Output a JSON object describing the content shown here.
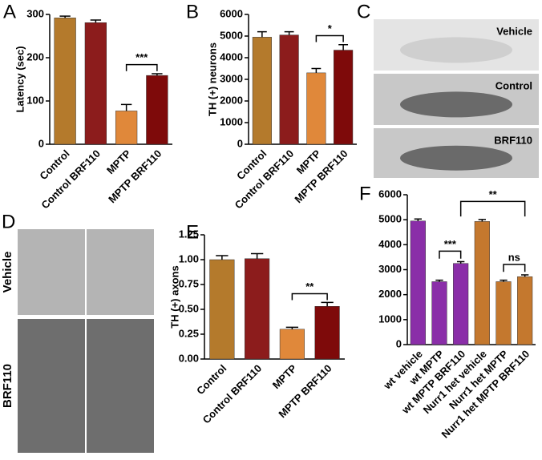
{
  "chart_data": [
    {
      "type": "bar",
      "panel": "A",
      "ylabel": "Latency (sec)",
      "categories": [
        "Control",
        "Control BRF110",
        "MPTP",
        "MPTP BRF110"
      ],
      "values": [
        292,
        281,
        77,
        159
      ],
      "errors": [
        4,
        6,
        15,
        4
      ],
      "colors": [
        "#b47a2c",
        "#8c1c1c",
        "#e0883a",
        "#7e0a0a"
      ],
      "ylim": [
        0,
        300
      ],
      "yticks": [
        0,
        100,
        200,
        300
      ],
      "annotations": [
        {
          "text": "***",
          "between": [
            "MPTP",
            "MPTP BRF110"
          ]
        }
      ]
    },
    {
      "type": "bar",
      "panel": "B",
      "ylabel": "TH (+) neurons",
      "categories": [
        "Control",
        "Control BRF110",
        "MPTP",
        "MPTP BRF110"
      ],
      "values": [
        4950,
        5050,
        3300,
        4350
      ],
      "errors": [
        250,
        150,
        200,
        250
      ],
      "colors": [
        "#b47a2c",
        "#8c1c1c",
        "#e0883a",
        "#7e0a0a"
      ],
      "ylim": [
        0,
        6000
      ],
      "yticks": [
        0,
        1000,
        2000,
        3000,
        4000,
        5000,
        6000
      ],
      "annotations": [
        {
          "text": "*",
          "between": [
            "MPTP",
            "MPTP BRF110"
          ]
        }
      ]
    },
    {
      "type": "bar",
      "panel": "E",
      "ylabel": "TH (+) axons",
      "categories": [
        "Control",
        "Control BRF110",
        "MPTP",
        "MPTP BRF110"
      ],
      "values": [
        1.0,
        1.01,
        0.3,
        0.53
      ],
      "errors": [
        0.04,
        0.05,
        0.02,
        0.04
      ],
      "colors": [
        "#b47a2c",
        "#8c1c1c",
        "#e0883a",
        "#7e0a0a"
      ],
      "ylim": [
        0,
        1.25
      ],
      "yticks": [
        {
          "value": 0,
          "label": "0.00"
        },
        {
          "value": 0.25,
          "label": "0.25"
        },
        {
          "value": 0.5,
          "label": "0.50"
        },
        {
          "value": 0.75,
          "label": "0.75"
        },
        {
          "value": 1,
          "label": "1.00"
        },
        {
          "value": 1.25,
          "label": "1.25"
        }
      ],
      "annotations": [
        {
          "text": "**",
          "between": [
            "MPTP",
            "MPTP BRF110"
          ]
        }
      ]
    },
    {
      "type": "bar",
      "panel": "F",
      "categories": [
        "wt vehicle",
        "wt MPTP",
        "wt MPTP BRF110",
        "Nurr1 het vehicle",
        "Nurr1 het MPTP",
        "Nurr1 het MPTP BRF110"
      ],
      "values": [
        4950,
        2520,
        3250,
        4930,
        2520,
        2720
      ],
      "errors": [
        80,
        60,
        70,
        80,
        60,
        70
      ],
      "colors": [
        "#8a2ea8",
        "#8a2ea8",
        "#8a2ea8",
        "#c4782e",
        "#c4782e",
        "#c4782e"
      ],
      "ylim": [
        0,
        6000
      ],
      "yticks": [
        0,
        1000,
        2000,
        3000,
        4000,
        5000,
        6000
      ],
      "annotations": [
        {
          "text": "***",
          "between": [
            "wt MPTP",
            "wt MPTP BRF110"
          ]
        },
        {
          "text": "ns",
          "between": [
            "Nurr1 het MPTP",
            "Nurr1 het MPTP BRF110"
          ]
        },
        {
          "text": "**",
          "between": [
            "wt MPTP BRF110",
            "Nurr1 het MPTP BRF110"
          ]
        }
      ]
    }
  ],
  "images": [
    {
      "panel": "C",
      "labels": [
        "Vehicle",
        "Control",
        "BRF110"
      ]
    },
    {
      "panel": "D",
      "labels": [
        "Vehicle",
        "BRF110"
      ]
    }
  ]
}
